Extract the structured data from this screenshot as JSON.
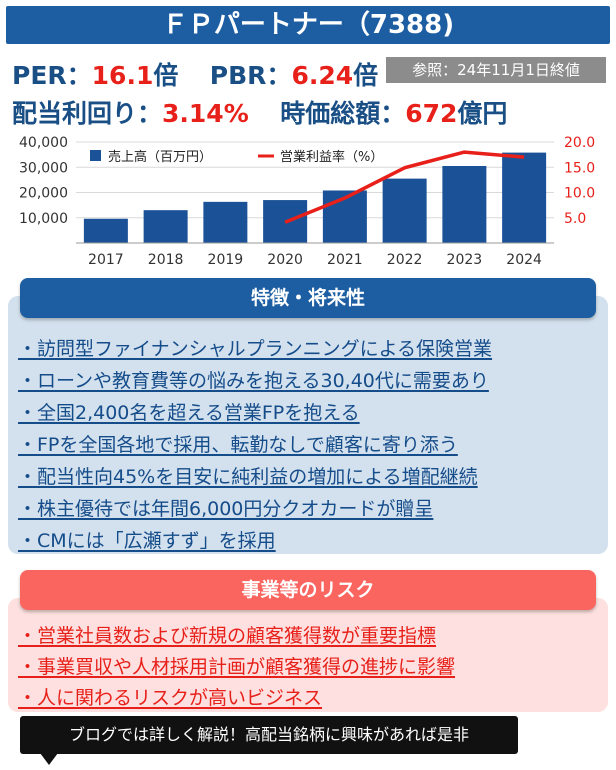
{
  "header": {
    "title": "ＦＰパートナー（7388)"
  },
  "metrics": {
    "per_label": "PER：",
    "per_value": "16.1",
    "per_unit": "倍",
    "pbr_label": "PBR：",
    "pbr_value": "6.24",
    "pbr_unit": "倍",
    "reference": "参照：24年11月1日終値",
    "dividend_label": "配当利回り：",
    "dividend_value": "3.14%",
    "marketcap_label": "時価総額：",
    "marketcap_value": "672",
    "marketcap_unit": "億円"
  },
  "chart_data": {
    "type": "bar",
    "categories": [
      "2017",
      "2018",
      "2019",
      "2020",
      "2021",
      "2022",
      "2023",
      "2024"
    ],
    "series": [
      {
        "name": "売上高（百万円）",
        "type": "bar",
        "axis": "left",
        "values": [
          9600,
          13000,
          16300,
          17000,
          20800,
          25500,
          30500,
          35800
        ]
      },
      {
        "name": "営業利益率（%）",
        "type": "line",
        "axis": "right",
        "values": [
          null,
          null,
          null,
          4.1,
          8.9,
          14.9,
          18.0,
          17.0
        ]
      }
    ],
    "y_left": {
      "ticks": [
        "10,000",
        "20,000",
        "30,000",
        "40,000"
      ],
      "tick_values": [
        10000,
        20000,
        30000,
        40000
      ],
      "range": [
        0,
        40000
      ]
    },
    "y_right": {
      "ticks": [
        "5.0",
        "10.0",
        "15.0",
        "20.0"
      ],
      "tick_values": [
        5,
        10,
        15,
        20
      ],
      "range": [
        0,
        20
      ]
    },
    "legend_position": "top-left",
    "colors": {
      "bar": "#1b5297",
      "line": "#e8201a",
      "grid": "#d9d9d9"
    }
  },
  "features": {
    "heading": "特徴・将来性",
    "items": [
      "・訪問型ファイナンシャルプランニングによる保険営業",
      "・ローンや教育費等の悩みを抱える30,40代に需要あり",
      "・全国2,400名を超える営業FPを抱える",
      "・FPを全国各地で採用、転勤なしで顧客に寄り添う",
      "・配当性向45%を目安に純利益の増加による増配継続",
      "・株主優待では年間6,000円分クオカードが贈呈",
      "・CMには「広瀬すず」を採用"
    ]
  },
  "risks": {
    "heading": "事業等のリスク",
    "items": [
      "・営業社員数および新規の顧客獲得数が重要指標",
      "・事業買収や人材採用計画が顧客獲得の進捗に影響",
      "・人に関わるリスクが高いビジネス"
    ]
  },
  "footer": {
    "callout": "ブログでは詳しく解説！高配当銘柄に興味があれば是非"
  },
  "theme": {
    "primary": "#1d5ea3",
    "feature_bg": "#d3e1ee",
    "risk_head": "#fb6560",
    "risk_bg": "#fde0df",
    "accent_red": "#e8201a"
  }
}
